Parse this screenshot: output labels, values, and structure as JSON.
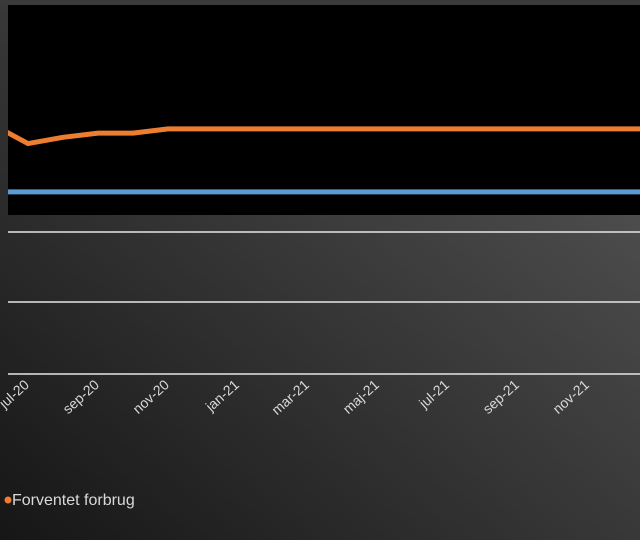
{
  "chart_data": {
    "type": "line",
    "categories": [
      null,
      "jul-20",
      null,
      "sep-20",
      null,
      "nov-20",
      null,
      "jan-21",
      null,
      "mar-21",
      null,
      "maj-21",
      null,
      "jul-21",
      null,
      "sep-21",
      null,
      "nov-21",
      null,
      null
    ],
    "series": [
      {
        "name": "Forventet forbrug",
        "color": "#ed7d31",
        "values": [
          43,
          34,
          37,
          39,
          39,
          41,
          41,
          41,
          41,
          41,
          41,
          41,
          41,
          41,
          41,
          41,
          41,
          41,
          41,
          41
        ]
      },
      {
        "color": "#5b9bd5",
        "values": [
          11,
          11,
          11,
          11,
          11,
          11,
          11,
          11,
          11,
          11,
          11,
          11,
          11,
          11,
          11,
          11,
          11,
          11,
          11,
          11
        ]
      }
    ],
    "ylim": [
      0,
      100
    ]
  }
}
